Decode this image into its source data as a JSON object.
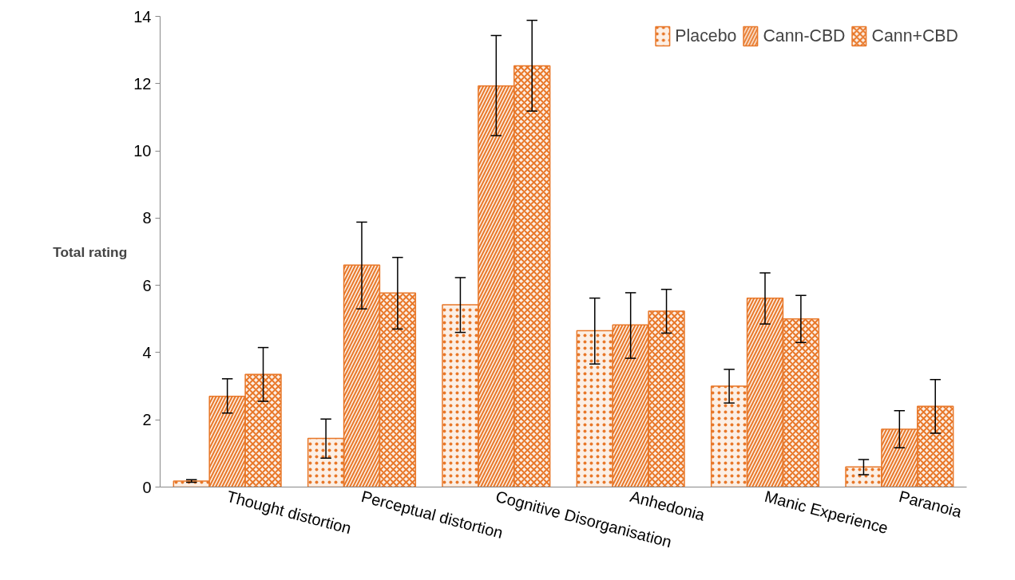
{
  "chart_data": {
    "type": "bar",
    "ylabel": "Total rating",
    "categories": [
      "Thought distortion",
      "Perceptual distortion",
      "Cognitive Disorganisation",
      "Anhedonia",
      "Manic Experience",
      "Paranoia"
    ],
    "series": [
      {
        "name": "Placebo",
        "color": "#e8782a",
        "values": [
          0.18,
          1.45,
          5.42,
          4.65,
          3.0,
          0.6
        ],
        "errors": [
          [
            0.14,
            0.22
          ],
          [
            0.86,
            2.02
          ],
          [
            4.6,
            6.23
          ],
          [
            3.66,
            5.62
          ],
          [
            2.5,
            3.5
          ],
          [
            0.37,
            0.82
          ]
        ]
      },
      {
        "name": "Cann-CBD",
        "color": "#e8782a",
        "values": [
          2.7,
          6.6,
          11.93,
          4.82,
          5.62,
          1.72
        ],
        "errors": [
          [
            2.2,
            3.22
          ],
          [
            5.3,
            7.88
          ],
          [
            10.45,
            13.43
          ],
          [
            3.83,
            5.78
          ],
          [
            4.85,
            6.37
          ],
          [
            1.17,
            2.27
          ]
        ]
      },
      {
        "name": "Cann+CBD",
        "color": "#e8782a",
        "values": [
          3.35,
          5.77,
          12.53,
          5.23,
          5.0,
          2.4
        ],
        "errors": [
          [
            2.55,
            4.15
          ],
          [
            4.7,
            6.83
          ],
          [
            11.18,
            13.88
          ],
          [
            4.58,
            5.88
          ],
          [
            4.3,
            5.7
          ],
          [
            1.6,
            3.2
          ]
        ]
      }
    ],
    "ylim": [
      0,
      14
    ],
    "yticks": [
      0,
      2,
      4,
      6,
      8,
      10,
      12,
      14
    ],
    "grid": false,
    "legend": "top right"
  }
}
